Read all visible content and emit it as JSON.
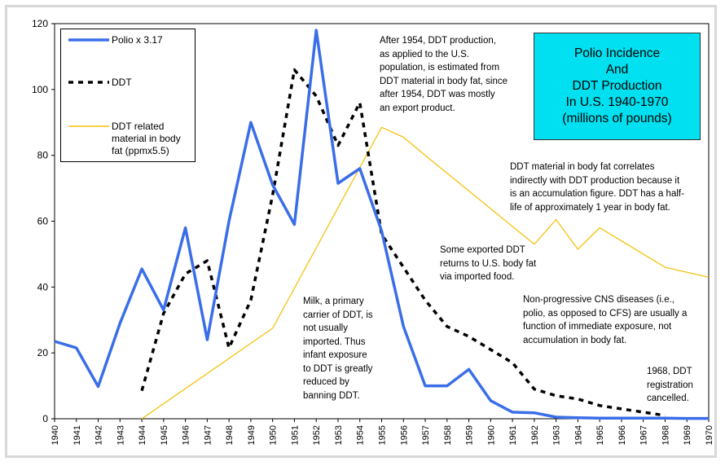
{
  "chart_data": {
    "type": "line",
    "title": "Polio Incidence\nAnd\nDDT Production\nIn U.S. 1940-1970\n(millions of pounds)",
    "xlabel": "",
    "ylabel": "",
    "ylim": [
      0,
      120
    ],
    "yticks": [
      "0",
      "20",
      "40",
      "60",
      "80",
      "100",
      "120"
    ],
    "x": [
      "1940",
      "1941",
      "1942",
      "1943",
      "1944",
      "1945",
      "1946",
      "1947",
      "1948",
      "1949",
      "1950",
      "1951",
      "1952",
      "1953",
      "1954",
      "1955",
      "1956",
      "1957",
      "1958",
      "1959",
      "1960",
      "1961",
      "1962",
      "1963",
      "1964",
      "1965",
      "1966",
      "1967",
      "1968",
      "1969",
      "1970"
    ],
    "legend_position": "top-left",
    "grid": false,
    "series": [
      {
        "name": "Polio x 3.17",
        "color": "#3a6ee8",
        "style": "solid",
        "values": [
          23.5,
          21.5,
          9.8,
          29,
          45.5,
          33,
          58,
          24,
          60,
          90,
          71,
          59,
          118,
          71.5,
          76,
          57,
          28,
          10,
          10,
          15,
          5.5,
          2,
          1.8,
          0.5,
          0.3,
          0.2,
          0.2,
          0.2,
          0.2,
          0.1,
          0.1
        ]
      },
      {
        "name": "DDT",
        "color": "#000000",
        "style": "dashed",
        "values": [
          null,
          null,
          null,
          null,
          8.5,
          32,
          44,
          48,
          21.5,
          36,
          68,
          106,
          98,
          83,
          96,
          56,
          46,
          36,
          28,
          25,
          21,
          17,
          9,
          7,
          6,
          4,
          3,
          2,
          1,
          null,
          null
        ]
      },
      {
        "name": "DDT related material in body fat (ppmx5.5)",
        "color": "#f5c20f",
        "style": "solid",
        "values": [
          null,
          null,
          null,
          null,
          0,
          null,
          null,
          null,
          null,
          null,
          27.5,
          null,
          null,
          null,
          null,
          88.5,
          85.5,
          80,
          null,
          null,
          null,
          null,
          53,
          60.5,
          51.5,
          58,
          null,
          null,
          46,
          null,
          43
        ]
      }
    ],
    "annotations": [
      "After 1954, DDT production,\nas applied to the U.S.\npopulation, is estimated from\nDDT material in body fat, since\nafter 1954, DDT was mostly\nan export product.",
      "DDT material in body fat correlates\nindirectly with DDT production because it\nis an accumulation figure. DDT has a half-\nlife of approximately 1 year in body fat.",
      "Some exported DDT\nreturns to U.S. body fat\nvia imported food.",
      "Non-progressive CNS diseases (i.e.,\npolio, as opposed to CFS) are usually a\nfunction of immediate exposure, not\naccumulation in body fat.",
      "Milk, a primary\ncarrier of DDT, is\nnot usually\nimported. Thus\ninfant exposure\nto DDT is greatly\nreduced by\nbanning DDT.",
      "1968, DDT\nregistration\ncancelled."
    ]
  }
}
